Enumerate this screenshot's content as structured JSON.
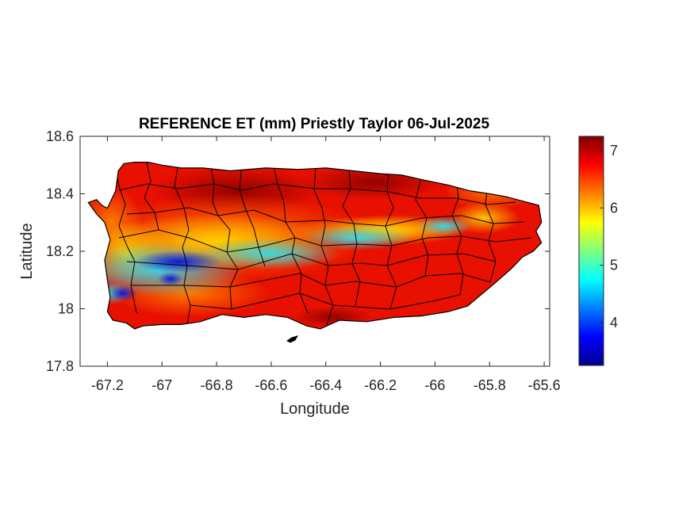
{
  "chart_data": {
    "type": "heatmap",
    "title": "REFERENCE ET (mm) Priestly Taylor 06-Jul-2025",
    "xlabel": "Longitude",
    "ylabel": "Latitude",
    "xlim": [
      -67.3,
      -65.58
    ],
    "ylim": [
      17.8,
      18.6
    ],
    "x_ticks": [
      -67.2,
      -67,
      -66.8,
      -66.6,
      -66.4,
      -66.2,
      -66,
      -65.8,
      -65.6
    ],
    "y_ticks": [
      17.8,
      18,
      18.2,
      18.4,
      18.6
    ],
    "x_tick_labels": [
      "-67.2",
      "-67",
      "-66.8",
      "-66.6",
      "-66.4",
      "-66.2",
      "-66",
      "-65.8",
      "-65.6"
    ],
    "y_tick_labels": [
      "17.8",
      "18",
      "18.2",
      "18.4",
      "18.6"
    ],
    "colorbar": {
      "colormap": "jet",
      "range": [
        3.25,
        7.25
      ],
      "ticks": [
        4,
        5,
        6,
        7
      ],
      "tick_labels": [
        "4",
        "5",
        "6",
        "7"
      ]
    },
    "grid": false,
    "colors": {
      "axis": "#262626",
      "boundary": "#000000"
    }
  }
}
